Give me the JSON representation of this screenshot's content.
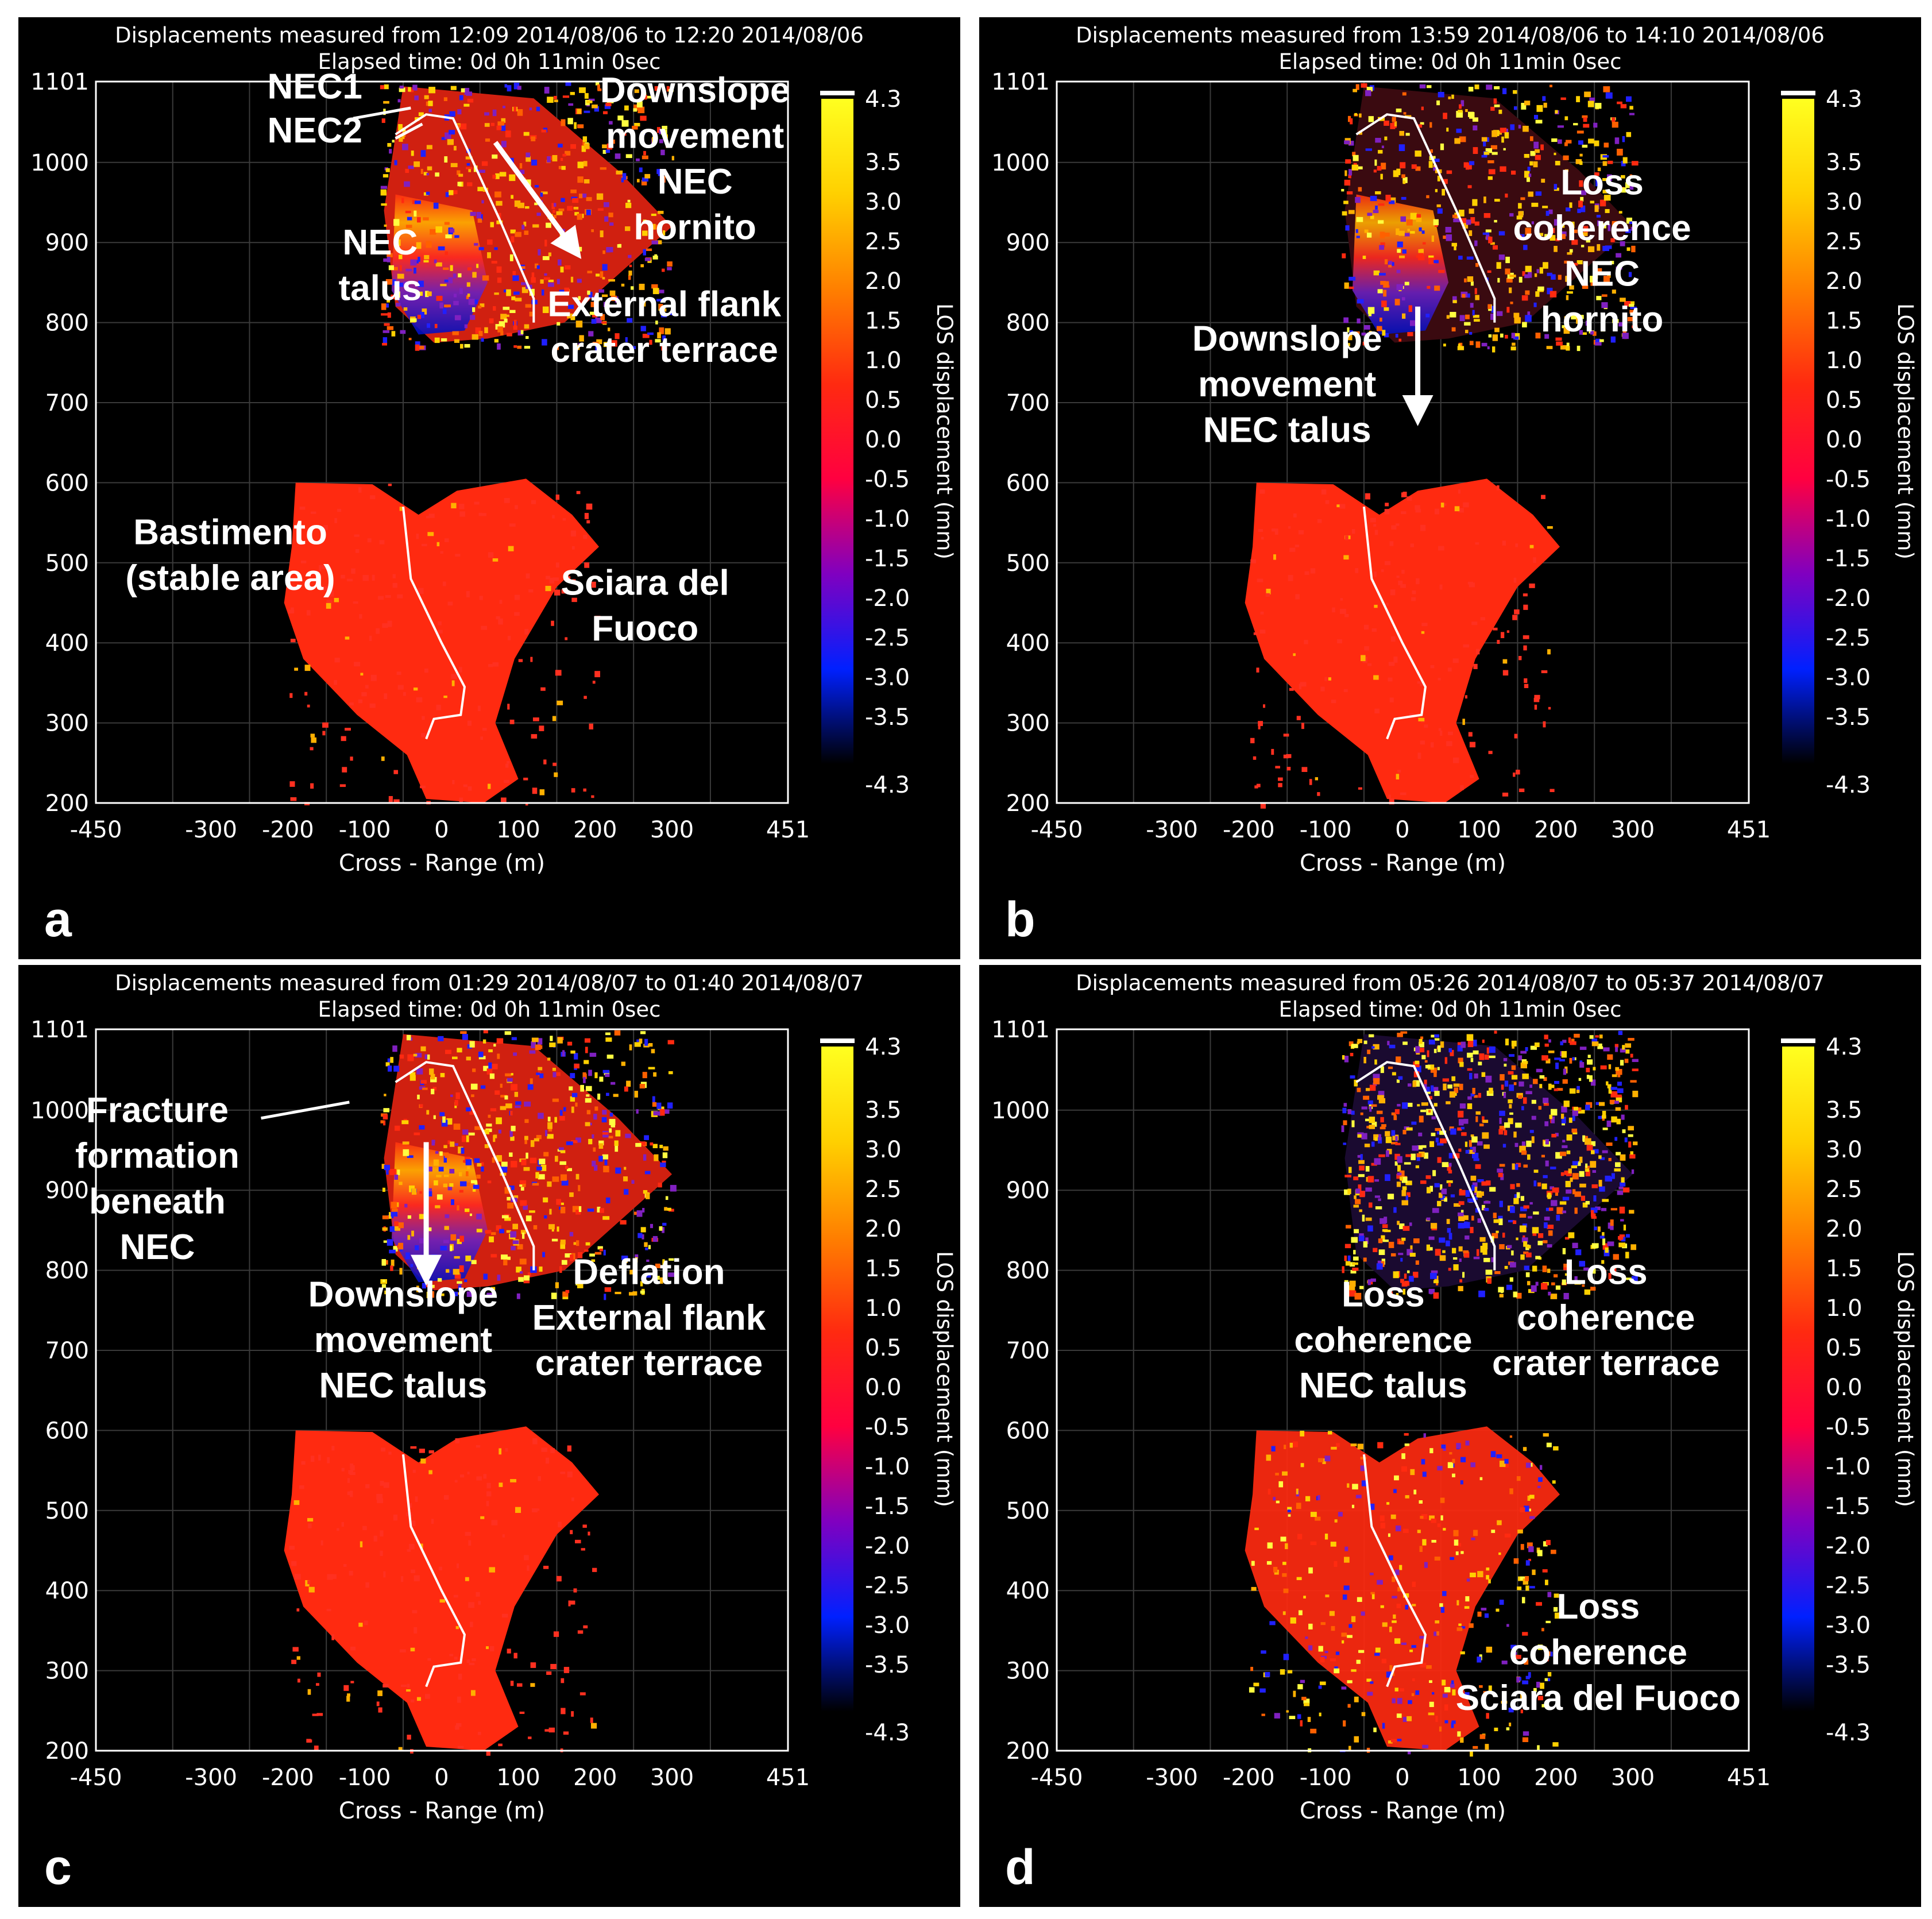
{
  "colors": {
    "background": "#000000",
    "frame": "#ffffff",
    "annotation": "#ffffff",
    "displacement_stable": "#ff2a10"
  },
  "colorbar": {
    "label": "LOS displacement (mm)",
    "ticks": [
      "4.3",
      "3.5",
      "3.0",
      "2.5",
      "2.0",
      "1.5",
      "1.0",
      "0.5",
      "0.0",
      "-0.5",
      "-1.0",
      "-1.5",
      "-2.0",
      "-2.5",
      "-3.0",
      "-3.5",
      "-4.3"
    ],
    "range": [
      -4.3,
      4.3
    ],
    "colors": [
      "#000000",
      "#0020ff",
      "#8000c0",
      "#ff0040",
      "#ff2a10",
      "#ff8000",
      "#ffd000",
      "#ffff20"
    ]
  },
  "axes": {
    "xlabel": "Cross - Range (m)",
    "xticks": [
      "-450",
      "-300",
      "-200",
      "-100",
      "0",
      "100",
      "200",
      "300",
      "451"
    ],
    "yticks": [
      "1101",
      "1000",
      "900",
      "800",
      "700",
      "600",
      "500",
      "400",
      "300",
      "200"
    ]
  },
  "chart_data": [
    {
      "type": "heatmap",
      "label": "a",
      "title": "Displacements measured from 12:09 2014/08/06 to 12:20 2014/08/06",
      "subtitle": "Elapsed time: 0d 0h 11min 0sec",
      "xlabel": "Cross - Range (m)",
      "ylabel": "",
      "xlim": [
        -450,
        451
      ],
      "ylim": [
        200,
        1101
      ],
      "annotations": [
        {
          "text": "NEC1",
          "x": -165,
          "y": 1080
        },
        {
          "text": "NEC2",
          "x": -165,
          "y": 1025
        },
        {
          "text": "Downslope",
          "x": 330,
          "y": 1075
        },
        {
          "text": "movement",
          "x": 330,
          "y": 1018
        },
        {
          "text": "NEC",
          "x": 330,
          "y": 961
        },
        {
          "text": "hornito",
          "x": 330,
          "y": 904
        },
        {
          "text": "NEC",
          "x": -80,
          "y": 885
        },
        {
          "text": "talus",
          "x": -80,
          "y": 828
        },
        {
          "text": "External flank",
          "x": 290,
          "y": 808
        },
        {
          "text": "crater terrace",
          "x": 290,
          "y": 751
        },
        {
          "text": "Bastimento",
          "x": -275,
          "y": 523
        },
        {
          "text": "(stable area)",
          "x": -275,
          "y": 466
        },
        {
          "text": "Sciara del",
          "x": 265,
          "y": 460
        },
        {
          "text": "Fuoco",
          "x": 265,
          "y": 403
        }
      ]
    },
    {
      "type": "heatmap",
      "label": "b",
      "title": "Displacements measured from 13:59 2014/08/06 to 14:10 2014/08/06",
      "subtitle": "Elapsed time: 0d 0h 11min 0sec",
      "xlabel": "Cross - Range (m)",
      "ylabel": "",
      "xlim": [
        -450,
        451
      ],
      "ylim": [
        200,
        1101
      ],
      "annotations": [
        {
          "text": "Loss",
          "x": 260,
          "y": 960
        },
        {
          "text": "coherence",
          "x": 260,
          "y": 903
        },
        {
          "text": "NEC",
          "x": 260,
          "y": 846
        },
        {
          "text": "hornito",
          "x": 260,
          "y": 789
        },
        {
          "text": "Downslope",
          "x": -150,
          "y": 765
        },
        {
          "text": "movement",
          "x": -150,
          "y": 708
        },
        {
          "text": "NEC talus",
          "x": -150,
          "y": 651
        }
      ]
    },
    {
      "type": "heatmap",
      "label": "c",
      "title": "Displacements measured from 01:29 2014/08/07 to 01:40 2014/08/07",
      "subtitle": "Elapsed time: 0d 0h 11min 0sec",
      "xlabel": "Cross - Range (m)",
      "ylabel": "",
      "xlim": [
        -450,
        451
      ],
      "ylim": [
        200,
        1101
      ],
      "annotations": [
        {
          "text": "Fracture",
          "x": -370,
          "y": 985
        },
        {
          "text": "formation",
          "x": -370,
          "y": 928
        },
        {
          "text": "beneath",
          "x": -370,
          "y": 871
        },
        {
          "text": "NEC",
          "x": -370,
          "y": 814
        },
        {
          "text": "Downslope",
          "x": -50,
          "y": 755
        },
        {
          "text": "movement",
          "x": -50,
          "y": 698
        },
        {
          "text": "NEC talus",
          "x": -50,
          "y": 641
        },
        {
          "text": "Deflation",
          "x": 270,
          "y": 783
        },
        {
          "text": "External flank",
          "x": 270,
          "y": 726
        },
        {
          "text": "crater terrace",
          "x": 270,
          "y": 669
        }
      ]
    },
    {
      "type": "heatmap",
      "label": "d",
      "title": "Displacements measured from 05:26 2014/08/07 to 05:37 2014/08/07",
      "subtitle": "Elapsed time: 0d 0h 11min 0sec",
      "xlabel": "Cross - Range (m)",
      "ylabel": "",
      "xlim": [
        -450,
        451
      ],
      "ylim": [
        200,
        1101
      ],
      "annotations": [
        {
          "text": "Loss",
          "x": -25,
          "y": 755
        },
        {
          "text": "coherence",
          "x": -25,
          "y": 698
        },
        {
          "text": "NEC talus",
          "x": -25,
          "y": 641
        },
        {
          "text": "Loss",
          "x": 265,
          "y": 783
        },
        {
          "text": "coherence",
          "x": 265,
          "y": 726
        },
        {
          "text": "crater terrace",
          "x": 265,
          "y": 669
        },
        {
          "text": "Loss",
          "x": 255,
          "y": 365
        },
        {
          "text": "coherence",
          "x": 255,
          "y": 308
        },
        {
          "text": "Sciara del Fuoco",
          "x": 255,
          "y": 251
        }
      ]
    }
  ]
}
